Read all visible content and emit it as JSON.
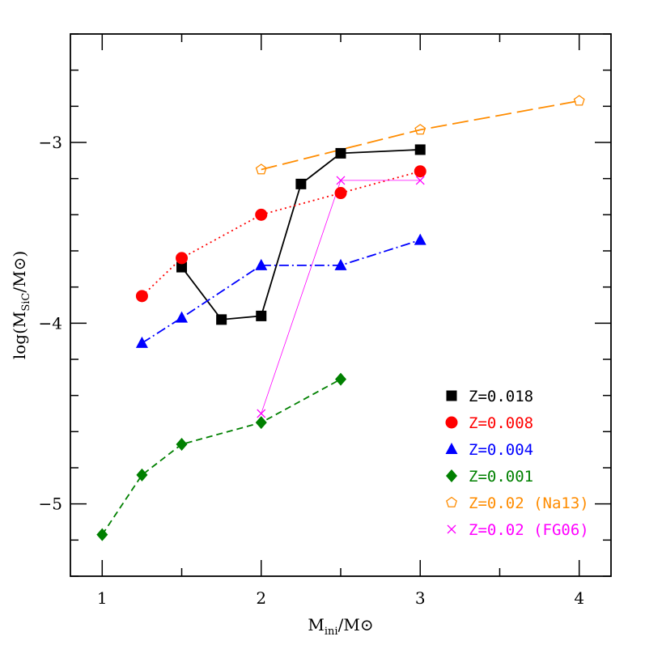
{
  "chart_data": {
    "type": "line",
    "title": "",
    "xlabel": {
      "main": "M",
      "sub": "ini",
      "after": "/M",
      "sym": "⊙"
    },
    "ylabel": {
      "main": "log(M",
      "sub": "SiC",
      "after": "/M",
      "sym": "⊙",
      "close": ")"
    },
    "xlim": [
      0.8,
      4.2
    ],
    "ylim": [
      -5.4,
      -2.4
    ],
    "x_ticks": [
      {
        "value": 1,
        "label": "1"
      },
      {
        "value": 2,
        "label": "2"
      },
      {
        "value": 3,
        "label": "3"
      },
      {
        "value": 4,
        "label": "4"
      }
    ],
    "y_ticks": [
      {
        "value": -3,
        "label": "−3"
      },
      {
        "value": -4,
        "label": "−4"
      },
      {
        "value": -5,
        "label": "−5"
      }
    ],
    "legend_position": "bottom-right",
    "series": [
      {
        "name": "Z=0.018",
        "color": "#000000",
        "marker": "square",
        "line": "solid",
        "line_width": 1.8,
        "x": [
          1.5,
          1.75,
          2.0,
          2.25,
          2.5,
          3.0
        ],
        "y": [
          -3.69,
          -3.98,
          -3.96,
          -3.23,
          -3.06,
          -3.04
        ]
      },
      {
        "name": "Z=0.008",
        "color": "#ff0000",
        "marker": "circle",
        "line": "dotted",
        "line_width": 1.8,
        "x": [
          1.25,
          1.5,
          2.0,
          2.5,
          3.0
        ],
        "y": [
          -3.85,
          -3.64,
          -3.4,
          -3.28,
          -3.16
        ]
      },
      {
        "name": "Z=0.004",
        "color": "#0000ff",
        "marker": "triangle",
        "line": "dashdot",
        "line_width": 1.8,
        "x": [
          1.25,
          1.5,
          2.0,
          2.5,
          3.0
        ],
        "y": [
          -4.11,
          -3.97,
          -3.68,
          -3.68,
          -3.54
        ]
      },
      {
        "name": "Z=0.001",
        "color": "#008000",
        "marker": "diamond",
        "line": "dashed",
        "line_width": 1.8,
        "x": [
          1.0,
          1.25,
          1.5,
          2.0,
          2.5
        ],
        "y": [
          -5.17,
          -4.84,
          -4.67,
          -4.55,
          -4.31
        ]
      },
      {
        "name": "Z=0.02 (Na13)",
        "color": "#ff8c00",
        "marker": "pentagon",
        "line": "longdash",
        "line_width": 1.8,
        "x": [
          2.0,
          3.0,
          4.0
        ],
        "y": [
          -3.15,
          -2.93,
          -2.77
        ]
      },
      {
        "name": "Z=0.02 (FG06)",
        "color": "#ff00ff",
        "marker": "cross",
        "line": "solid",
        "line_width": 0.8,
        "x": [
          2.0,
          2.5,
          3.0
        ],
        "y": [
          -4.5,
          -3.21,
          -3.21
        ]
      }
    ]
  }
}
